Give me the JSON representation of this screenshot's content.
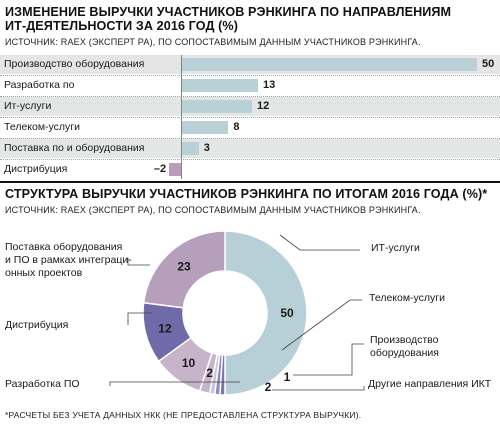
{
  "colors": {
    "bar_positive": "#b9d0d7",
    "bar_negative": "#b99cbb",
    "donut_it": "#b7cfd6",
    "donut_telecom": "#7c76ae",
    "donut_hardware": "#8c8ab8",
    "donut_other": "#c5c6dc",
    "donut_software": "#c6b4ca",
    "donut_dev": "#706aa9",
    "donut_distribution": "#b59fbb",
    "donut_integration": "#b59fbb"
  },
  "top": {
    "title_line1": "ИЗМЕНЕНИЕ ВЫРУЧКИ УЧАСТНИКОВ РЭНКИНГА ПО НАПРАВЛЕНИЯМ",
    "title_line2": "ИТ-ДЕЯТЕЛЬНОСТИ ЗА 2016 ГОД (%)",
    "source": "ИСТОЧНИК: RAEX (ЭКСПЕРТ РА), ПО СОПОСТАВИМЫМ ДАННЫМ УЧАСТНИКОВ РЭНКИНГА."
  },
  "bottom": {
    "title": "СТРУКТУРА ВЫРУЧКИ УЧАСТНИКОВ РЭНКИНГА ПО ИТОГАМ 2016 ГОДА (%)*",
    "source": "ИСТОЧНИК: RAEX (ЭКСПЕРТ РА), ПО СОПОСТАВИМЫМ ДАННЫМ УЧАСТНИКОВ РЭНКИНГА.",
    "footnote": "*РАСЧЕТЫ БЕЗ УЧЕТА ДАННЫХ НКК (НЕ ПРЕДОСТАВЛЕНА СТРУКТУРА ВЫРУЧКИ)."
  },
  "chart_data": [
    {
      "type": "bar",
      "orientation": "horizontal",
      "title": "ИЗМЕНЕНИЕ ВЫРУЧКИ УЧАСТНИКОВ РЭНКИНГА ПО НАПРАВЛЕНИЯМ ИТ-ДЕЯТЕЛЬНОСТИ ЗА 2016 ГОД (%)",
      "categories": [
        "Производство оборудования",
        "Разработка по",
        "Ит-услуги",
        "Телеком-услуги",
        "Поставка по и оборудования",
        "Дистрибуция"
      ],
      "values": [
        50,
        13,
        12,
        8,
        3,
        -2
      ],
      "value_labels": [
        "50",
        "13",
        "12",
        "8",
        "3",
        "–2"
      ],
      "xlim": [
        -2,
        50
      ]
    },
    {
      "type": "pie",
      "style": "donut",
      "title": "СТРУКТУРА ВЫРУЧКИ УЧАСТНИКОВ РЭНКИНГА ПО ИТОГАМ 2016 ГОДА (%)*",
      "slices": [
        {
          "label": "ИТ-услуги",
          "value": 50,
          "value_label": "50",
          "color_key": "donut_it"
        },
        {
          "label": "Телеком-услуги",
          "value": 1,
          "value_label": "",
          "color_key": "donut_telecom"
        },
        {
          "label": "Производство оборудования",
          "value": 1,
          "value_label": "",
          "color_key": "donut_hardware"
        },
        {
          "label": "Другие направления ИКТ",
          "value": 1,
          "value_label": "",
          "color_key": "donut_other"
        },
        {
          "label": "",
          "value": 2,
          "value_label": "2",
          "color_key": "donut_software"
        },
        {
          "label": "Разработка ПО",
          "value": 10,
          "value_label": "10",
          "color_key": "donut_software"
        },
        {
          "label": "",
          "value": 12,
          "value_label": "12",
          "color_key": "donut_dev"
        },
        {
          "label": "Дистрибуция",
          "value": 23,
          "value_label": "23",
          "color_key": "donut_distribution"
        }
      ],
      "point_labels": [
        "1",
        "2"
      ],
      "callouts": [
        "Поставка оборудования",
        "и ПО в рамках интеграци-",
        "онных проектов"
      ]
    }
  ]
}
